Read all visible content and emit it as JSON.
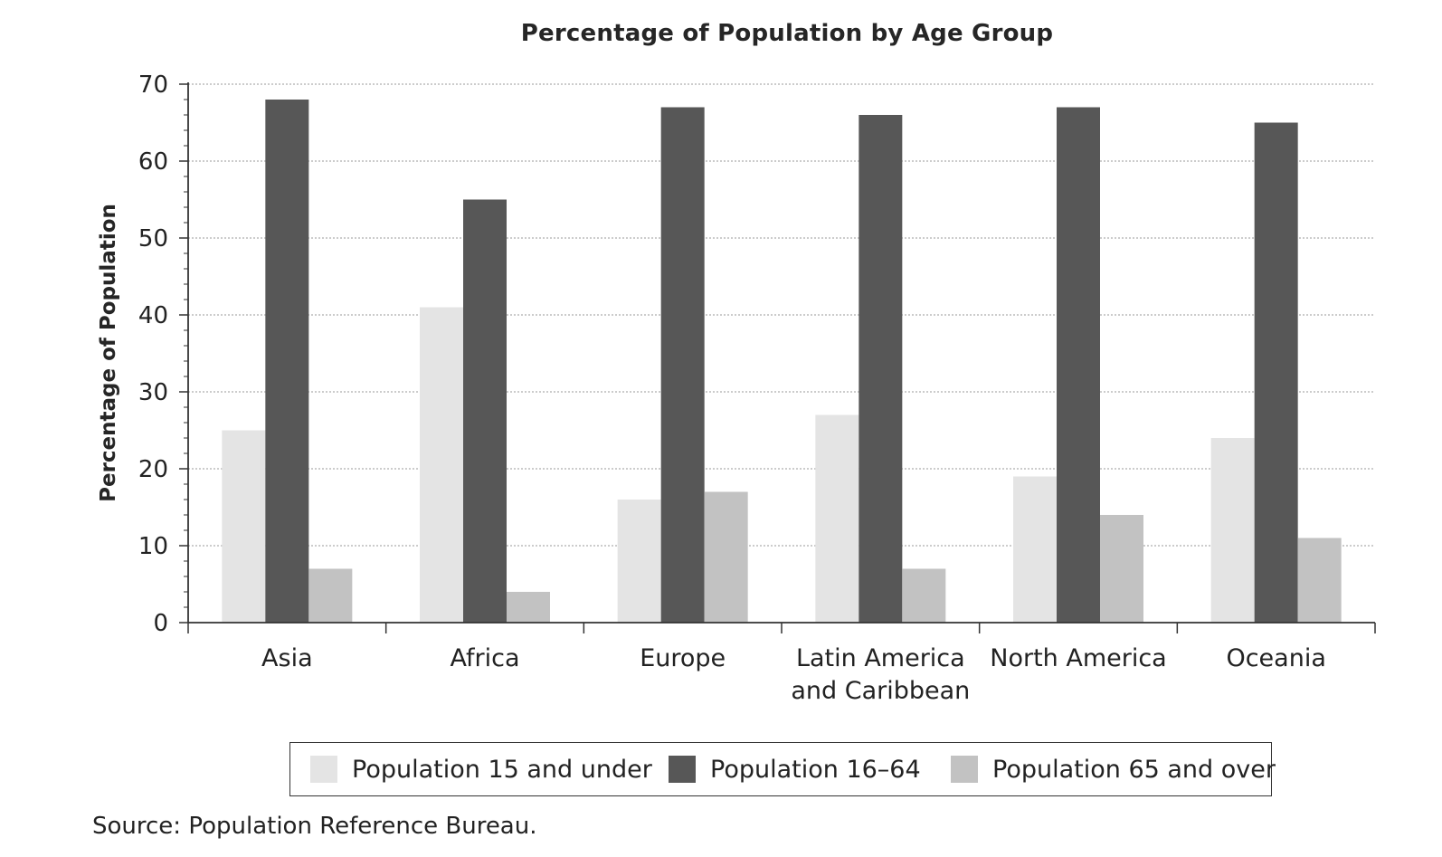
{
  "chart_data": {
    "type": "bar",
    "title": "Percentage of Population by Age Group",
    "xlabel": "",
    "ylabel": "Percentage of Population",
    "ylim": [
      0,
      70
    ],
    "yticks": [
      0,
      10,
      20,
      30,
      40,
      50,
      60,
      70
    ],
    "grid": true,
    "legend_position": "bottom",
    "categories": [
      [
        "Asia"
      ],
      [
        "Africa"
      ],
      [
        "Europe"
      ],
      [
        "Latin America",
        "and Caribbean"
      ],
      [
        "North America"
      ],
      [
        "Oceania"
      ]
    ],
    "series": [
      {
        "name": "Population 15 and under",
        "color": "#e4e4e4",
        "values": [
          25,
          41,
          16,
          27,
          19,
          24
        ]
      },
      {
        "name": "Population 16–64",
        "color": "#575757",
        "values": [
          68,
          55,
          67,
          66,
          67,
          65
        ]
      },
      {
        "name": "Population 65 and over",
        "color": "#c2c2c2",
        "values": [
          7,
          4,
          17,
          7,
          14,
          11
        ]
      }
    ],
    "source": "Source: Population Reference Bureau."
  }
}
